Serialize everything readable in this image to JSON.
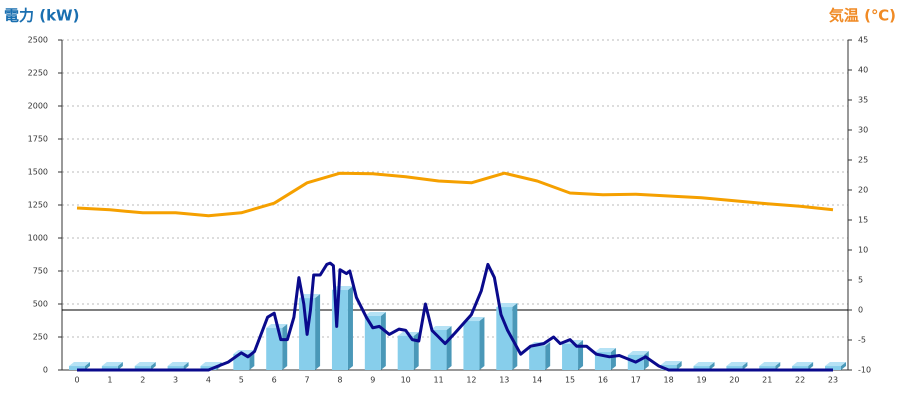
{
  "chart_data": {
    "type": "bar",
    "y_label": "電力 (kW)",
    "y2_label": "気温 (℃)",
    "categories": [
      "0",
      "1",
      "2",
      "3",
      "4",
      "5",
      "6",
      "7",
      "8",
      "9",
      "10",
      "11",
      "12",
      "13",
      "14",
      "15",
      "16",
      "17",
      "18",
      "19",
      "20",
      "21",
      "22",
      "23"
    ],
    "ylim": [
      0,
      2500
    ],
    "yticks": [
      0,
      250,
      500,
      750,
      1000,
      1250,
      1500,
      1750,
      2000,
      2250,
      2500
    ],
    "y2lim": [
      -10,
      45
    ],
    "y2ticks": [
      -10,
      -5,
      0,
      5,
      10,
      15,
      20,
      25,
      30,
      35,
      40,
      45
    ],
    "y2_reference_line": 0,
    "grid": true,
    "series": [
      {
        "type": "bar",
        "color": "#87ceeb",
        "values": [
          30,
          30,
          30,
          30,
          30,
          121,
          318,
          545,
          606,
          409,
          258,
          303,
          371,
          477,
          182,
          197,
          136,
          114,
          38,
          30,
          30,
          30,
          30,
          30
        ]
      },
      {
        "type": "line",
        "color": "#0a0a8c",
        "x": [
          0,
          4,
          4.3,
          4.6,
          5,
          5.2,
          5.4,
          5.8,
          6,
          6.2,
          6.4,
          6.6,
          6.75,
          6.9,
          7,
          7.1,
          7.2,
          7.4,
          7.6,
          7.7,
          7.8,
          7.9,
          8,
          8.2,
          8.3,
          8.5,
          8.8,
          9,
          9.2,
          9.5,
          9.8,
          10,
          10.2,
          10.4,
          10.6,
          10.8,
          11,
          11.2,
          11.5,
          12,
          12.3,
          12.5,
          12.7,
          12.9,
          13.1,
          13.5,
          13.8,
          14.2,
          14.5,
          14.7,
          15,
          15.2,
          15.5,
          15.8,
          16.2,
          16.5,
          17,
          17.3,
          17.7,
          18,
          23
        ],
        "values": [
          0,
          0,
          30,
          60,
          130,
          100,
          140,
          400,
          430,
          230,
          230,
          400,
          700,
          500,
          270,
          450,
          720,
          720,
          800,
          810,
          790,
          330,
          760,
          730,
          750,
          550,
          400,
          320,
          330,
          270,
          310,
          300,
          230,
          220,
          500,
          300,
          250,
          200,
          280,
          420,
          600,
          800,
          700,
          420,
          300,
          120,
          180,
          200,
          250,
          200,
          230,
          180,
          180,
          120,
          100,
          110,
          60,
          100,
          30,
          0,
          0
        ]
      },
      {
        "type": "line",
        "axis": "y2",
        "color": "#f5a000",
        "values": [
          17,
          16.7,
          16.2,
          16.2,
          15.7,
          16.2,
          17.8,
          21.2,
          22.8,
          22.7,
          22.2,
          21.5,
          21.2,
          22.8,
          21.5,
          19.5,
          19.2,
          19.3,
          19,
          18.7,
          18.2,
          17.7,
          17.3,
          16.7
        ]
      }
    ]
  }
}
